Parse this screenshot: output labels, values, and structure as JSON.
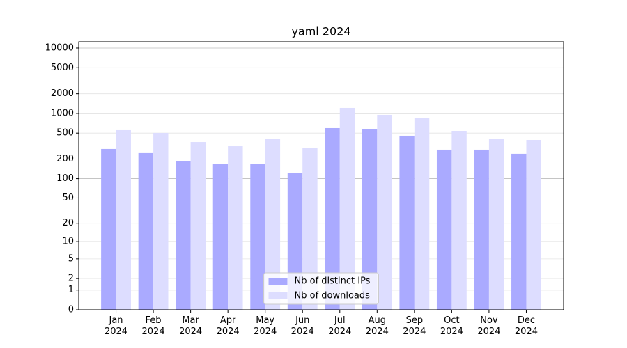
{
  "chart_data": {
    "type": "bar",
    "title": "yaml 2024",
    "categories": [
      "Jan\n2024",
      "Feb\n2024",
      "Mar\n2024",
      "Apr\n2024",
      "May\n2024",
      "Jun\n2024",
      "Jul\n2024",
      "Aug\n2024",
      "Sep\n2024",
      "Oct\n2024",
      "Nov\n2024",
      "Dec\n2024"
    ],
    "series": [
      {
        "name": "Nb of distinct IPs",
        "color": "#aaaaff",
        "values": [
          286,
          247,
          188,
          170,
          170,
          121,
          597,
          582,
          456,
          279,
          279,
          241
        ]
      },
      {
        "name": "Nb of downloads",
        "color": "#ddddff",
        "values": [
          555,
          503,
          365,
          315,
          413,
          293,
          1216,
          952,
          842,
          541,
          413,
          393
        ]
      }
    ],
    "yscale": "log1p",
    "ylim": [
      0,
      12460
    ],
    "yticks": [
      0,
      1,
      2,
      5,
      10,
      20,
      50,
      100,
      200,
      500,
      1000,
      2000,
      5000,
      10000
    ],
    "grid": true,
    "legend": "lower center"
  }
}
